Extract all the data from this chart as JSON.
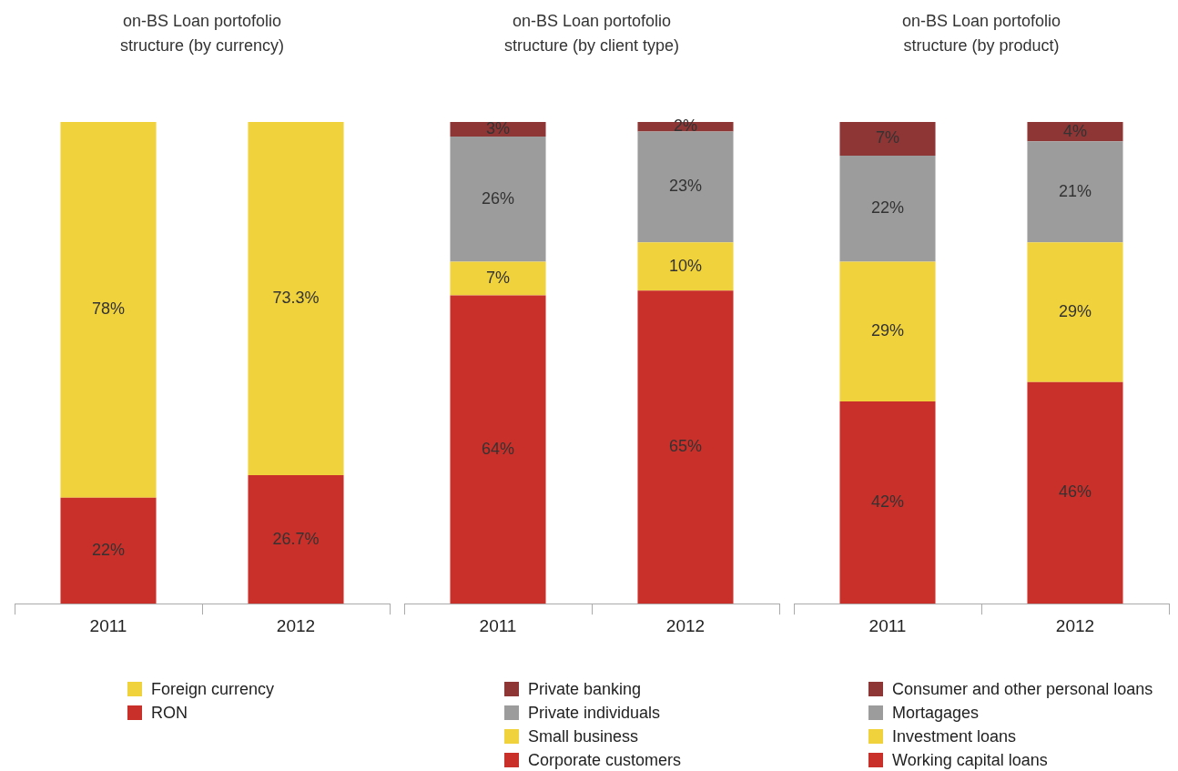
{
  "chart_data": [
    {
      "type": "bar",
      "title": "on-BS Loan portofolio structure (by currency)",
      "categories": [
        "2011",
        "2012"
      ],
      "stacked": true,
      "ylim": [
        0,
        100
      ],
      "tick_labels": "x",
      "legend": "bottom",
      "series": [
        {
          "name": "RON",
          "color": "#c9302a",
          "values": [
            22,
            26.7
          ],
          "value_labels": [
            "22%",
            "26.7%"
          ]
        },
        {
          "name": "Foreign currency",
          "color": "#f0d23c",
          "values": [
            78,
            73.3
          ],
          "value_labels": [
            "78%",
            "73.3%"
          ]
        }
      ]
    },
    {
      "type": "bar",
      "title": "on-BS Loan portofolio structure (by client type)",
      "categories": [
        "2011",
        "2012"
      ],
      "stacked": true,
      "ylim": [
        0,
        100
      ],
      "tick_labels": "x",
      "legend": "bottom",
      "series": [
        {
          "name": "Corporate customers",
          "color": "#c9302a",
          "values": [
            64,
            65
          ],
          "value_labels": [
            "64%",
            "65%"
          ]
        },
        {
          "name": "Small business",
          "color": "#f0d23c",
          "values": [
            7,
            10
          ],
          "value_labels": [
            "7%",
            "10%"
          ]
        },
        {
          "name": "Private individuals",
          "color": "#9c9c9c",
          "values": [
            26,
            23
          ],
          "value_labels": [
            "26%",
            "23%"
          ]
        },
        {
          "name": "Private banking",
          "color": "#8e3535",
          "values": [
            3,
            2
          ],
          "value_labels": [
            "3%",
            "2%"
          ]
        }
      ]
    },
    {
      "type": "bar",
      "title": "on-BS Loan portofolio structure (by product)",
      "categories": [
        "2011",
        "2012"
      ],
      "stacked": true,
      "ylim": [
        0,
        100
      ],
      "tick_labels": "x",
      "legend": "bottom",
      "series": [
        {
          "name": "Working capital loans",
          "color": "#c9302a",
          "values": [
            42,
            46
          ],
          "value_labels": [
            "42%",
            "46%"
          ]
        },
        {
          "name": "Investment loans",
          "color": "#f0d23c",
          "values": [
            29,
            29
          ],
          "value_labels": [
            "29%",
            "29%"
          ]
        },
        {
          "name": "Mortagages",
          "color": "#9c9c9c",
          "values": [
            22,
            21
          ],
          "value_labels": [
            "22%",
            "21%"
          ]
        },
        {
          "name": "Consumer and other personal loans",
          "color": "#8e3535",
          "values": [
            7,
            4
          ],
          "value_labels": [
            "7%",
            "4%"
          ]
        }
      ]
    }
  ]
}
